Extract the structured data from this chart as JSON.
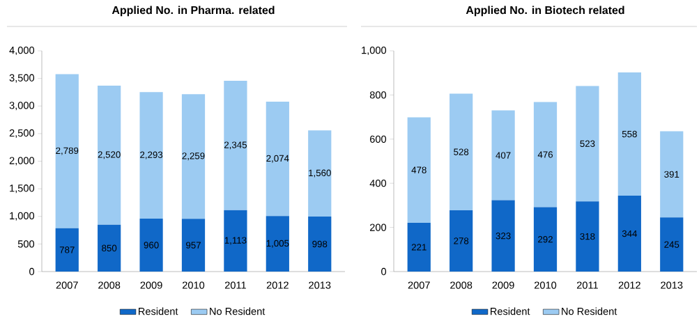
{
  "chart_data": [
    {
      "type": "bar",
      "title": "Applied No. in Pharma. related",
      "categories": [
        "2007",
        "2008",
        "2009",
        "2010",
        "2011",
        "2012",
        "2013"
      ],
      "stacked": true,
      "legend": "bottom",
      "series": [
        {
          "name": "Resident",
          "color": "#1068c8",
          "values": [
            787,
            850,
            960,
            957,
            1113,
            1005,
            998
          ],
          "value_labels": [
            "787",
            "850",
            "960",
            "957",
            "1,113",
            "1,005",
            "998"
          ]
        },
        {
          "name": "No Resident",
          "color": "#9ccbf2",
          "values": [
            2789,
            2520,
            2293,
            2259,
            2345,
            2074,
            1560
          ],
          "value_labels": [
            "2,789",
            "2,520",
            "2,293",
            "2,259",
            "2,345",
            "2,074",
            "1,560"
          ]
        }
      ],
      "ylim": [
        0,
        4000
      ],
      "yticks": [
        0,
        500,
        {
          "value": 1000,
          "label": "1,000"
        },
        {
          "value": 1500,
          "label": "1,500"
        },
        {
          "value": 2000,
          "label": "2,000"
        },
        {
          "value": 2500,
          "label": "2,500"
        },
        {
          "value": 3000,
          "label": "3,000"
        },
        {
          "value": 3500,
          "label": "3,500"
        },
        {
          "value": 4000,
          "label": "4,000"
        }
      ]
    },
    {
      "type": "bar",
      "title": "Applied No. in Biotech related",
      "categories": [
        "2007",
        "2008",
        "2009",
        "2010",
        "2011",
        "2012",
        "2013"
      ],
      "stacked": true,
      "legend": "bottom",
      "series": [
        {
          "name": "Resident",
          "color": "#1068c8",
          "values": [
            221,
            278,
            323,
            292,
            318,
            344,
            245
          ],
          "value_labels": [
            "221",
            "278",
            "323",
            "292",
            "318",
            "344",
            "245"
          ]
        },
        {
          "name": "No Resident",
          "color": "#9ccbf2",
          "values": [
            478,
            528,
            407,
            476,
            523,
            558,
            391
          ],
          "value_labels": [
            "478",
            "528",
            "407",
            "476",
            "523",
            "558",
            "391"
          ]
        }
      ],
      "ylim": [
        0,
        1000
      ],
      "yticks": [
        0,
        200,
        400,
        600,
        800,
        {
          "value": 1000,
          "label": "1,000"
        }
      ]
    }
  ]
}
